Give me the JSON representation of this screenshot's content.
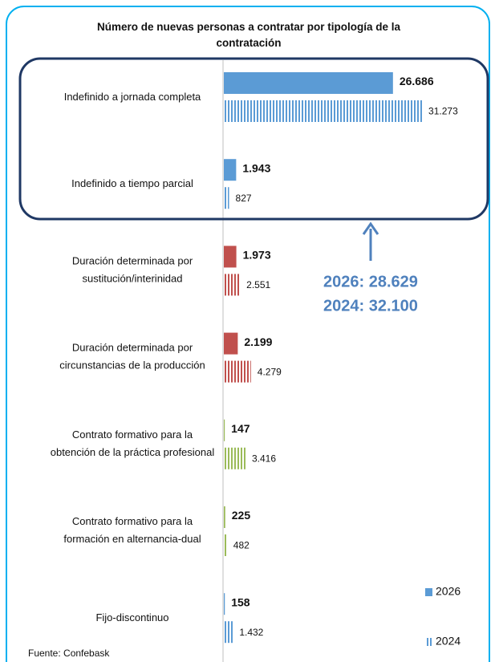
{
  "chart_data": {
    "type": "hbar",
    "title": "Número de nuevas personas a contratar por tipología de la contratación",
    "categories": [
      "Indefinido a jornada completa",
      "Indefinido a tiempo parcial",
      "Duración determinada por\nsustitución/interinidad",
      "Duración determinada por\ncircunstancias de la producción",
      "Contrato formativo para la\nobtención de la práctica profesional",
      "Contrato formativo para la\nformación en alternancia-dual",
      "Fijo-discontinuo"
    ],
    "colors": [
      "#5b9bd5",
      "#5b9bd5",
      "#c0504d",
      "#c0504d",
      "#9bbb59",
      "#9bbb59",
      "#5b9bd5"
    ],
    "series": [
      {
        "name": "2026",
        "color": "#5b9bd5",
        "pattern": "solid",
        "values": [
          26686,
          1943,
          1973,
          2199,
          147,
          225,
          158
        ],
        "value_labels": [
          "26.686",
          "1.943",
          "1.973",
          "2.199",
          "147",
          "225",
          "158"
        ]
      },
      {
        "name": "2024",
        "color": "#5b9bd5",
        "pattern": "striped",
        "values": [
          31273,
          827,
          2551,
          4279,
          3416,
          482,
          1432
        ],
        "value_labels": [
          "31.273",
          "827",
          "2.551",
          "4.279",
          "3.416",
          "482",
          "1.432"
        ]
      }
    ],
    "xlim": [
      0,
      40000
    ],
    "annotations": [
      "2026: 28.629",
      "2024: 32.100"
    ],
    "source": "Fuente: Confebask"
  }
}
